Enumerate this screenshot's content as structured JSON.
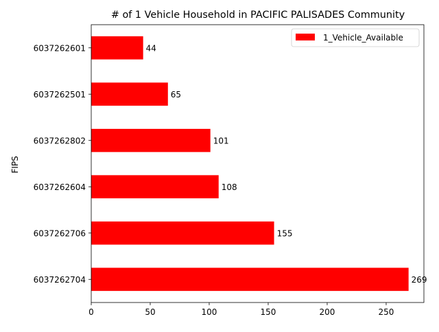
{
  "chart_data": {
    "type": "bar",
    "orientation": "horizontal",
    "title": "# of 1 Vehicle Household in PACIFIC PALISADES Community",
    "xlabel": "",
    "ylabel": "FIPS",
    "categories": [
      "6037262601",
      "6037262501",
      "6037262802",
      "6037262604",
      "6037262706",
      "6037262704"
    ],
    "series": [
      {
        "name": "1_Vehicle_Available",
        "values": [
          44,
          65,
          101,
          108,
          155,
          269
        ],
        "color": "#ff0000"
      }
    ],
    "data_labels": [
      "44",
      "65",
      "101",
      "108",
      "155",
      "269"
    ],
    "xlim": [
      0,
      282
    ],
    "xticks": [
      0,
      50,
      100,
      150,
      200,
      250
    ],
    "grid": false,
    "legend_position": "upper-right"
  }
}
